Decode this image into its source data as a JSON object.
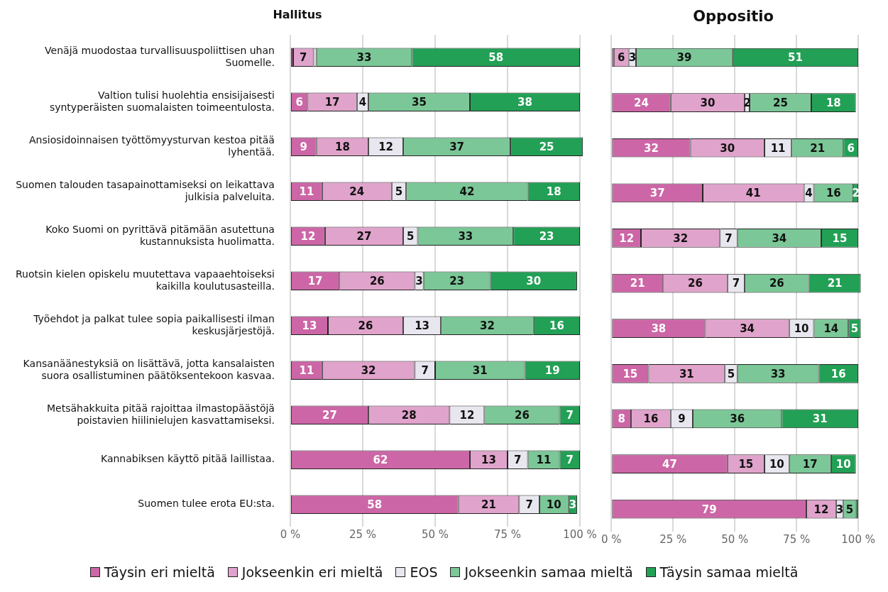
{
  "chart_data": [
    {
      "type": "bar",
      "orientation": "horizontal",
      "stacked": true,
      "title": "Hallitus",
      "categories": [
        "Venäjä muodostaa turvallisuuspoliittisen uhan Suomelle.",
        "Valtion tulisi huolehtia ensisijaisesti syntyperäisten suomalaisten toimeentulosta.",
        "Ansiosidoinnaisen työttömyysturvan kestoa pitää lyhentää.",
        "Suomen talouden tasapainottamiseksi on leikattava julkisia palveluita.",
        "Koko Suomi on pyrittävä pitämään asutettuna kustannuksista huolimatta.",
        "Ruotsin kielen opiskelu muutettava vapaaehtoiseksi kaikilla koulutusasteilla.",
        "Työehdot ja palkat tulee sopia paikallisesti ilman keskusjärjestöjä.",
        "Kansanäänestyksiä on lisättävä, jotta kansalaisten suora osallistuminen päätöksentekoon kasvaa.",
        "Metsähakkuita pitää rajoittaa ilmastopäästöjä poistavien hiilinielujen kasvattamiseksi.",
        "Kannabiksen käyttö pitää laillistaa.",
        "Suomen tulee erota EU:sta."
      ],
      "series": [
        {
          "name": "Täysin eri mieltä",
          "color": "#cc66a6",
          "values": [
            1,
            6,
            9,
            11,
            12,
            17,
            13,
            11,
            27,
            62,
            58
          ],
          "value_labels": [
            null,
            "6",
            "9",
            "11",
            "12",
            "17",
            "13",
            "11",
            "27",
            "62",
            "58"
          ]
        },
        {
          "name": "Jokseenkin eri mieltä",
          "color": "#e0a3cb",
          "values": [
            7,
            17,
            18,
            24,
            27,
            26,
            26,
            32,
            28,
            13,
            21
          ],
          "value_labels": [
            "7",
            "17",
            "18",
            "24",
            "27",
            "26",
            "26",
            "32",
            "28",
            "13",
            "21"
          ]
        },
        {
          "name": "EOS",
          "color": "#e8e6ee",
          "values": [
            1,
            4,
            12,
            5,
            5,
            3,
            13,
            7,
            12,
            7,
            7
          ],
          "value_labels": [
            null,
            "4",
            "12",
            "5",
            "5",
            "3",
            "13",
            "7",
            "12",
            "7",
            "7"
          ]
        },
        {
          "name": "Jokseenkin samaa mieltä",
          "color": "#7bc797",
          "values": [
            33,
            35,
            37,
            42,
            33,
            23,
            32,
            31,
            26,
            11,
            10
          ],
          "value_labels": [
            "33",
            "35",
            "37",
            "42",
            "33",
            "23",
            "32",
            "31",
            "26",
            "11",
            "10"
          ]
        },
        {
          "name": "Täysin samaa mieltä",
          "color": "#22a055",
          "values": [
            58,
            38,
            25,
            18,
            23,
            30,
            16,
            19,
            7,
            7,
            3
          ],
          "value_labels": [
            "58",
            "38",
            "25",
            "18",
            "23",
            "30",
            "16",
            "19",
            "7",
            "7",
            "3"
          ]
        }
      ],
      "xlim": [
        0,
        101
      ],
      "xticks": [
        {
          "value": 0,
          "label": "0 %"
        },
        {
          "value": 25,
          "label": "25 %"
        },
        {
          "value": 50,
          "label": "50 %"
        },
        {
          "value": 75,
          "label": "75 %"
        },
        {
          "value": 100,
          "label": "100 %"
        }
      ],
      "grid": "x",
      "legend": "bottom"
    },
    {
      "type": "bar",
      "orientation": "horizontal",
      "stacked": true,
      "title": "Oppositio",
      "categories": [
        null,
        null,
        null,
        null,
        null,
        null,
        null,
        null,
        null,
        null,
        null
      ],
      "series": [
        {
          "color": "#cc66a6",
          "values": [
            1,
            24,
            32,
            37,
            12,
            21,
            38,
            15,
            8,
            47,
            79
          ],
          "value_labels": [
            null,
            "24",
            "32",
            "37",
            "12",
            "21",
            "38",
            "15",
            "8",
            "47",
            "79"
          ]
        },
        {
          "color": "#e0a3cb",
          "values": [
            6,
            30,
            30,
            41,
            32,
            26,
            34,
            31,
            16,
            15,
            12
          ],
          "value_labels": [
            "6",
            "30",
            "30",
            "41",
            "32",
            "26",
            "34",
            "31",
            "16",
            "15",
            "12"
          ]
        },
        {
          "color": "#e8e6ee",
          "values": [
            3,
            2,
            11,
            4,
            7,
            7,
            10,
            5,
            9,
            10,
            3
          ],
          "value_labels": [
            "3",
            "2",
            "11",
            "4",
            "7",
            "7",
            "10",
            "5",
            "9",
            "10",
            "3"
          ]
        },
        {
          "color": "#7bc797",
          "values": [
            39,
            25,
            21,
            16,
            34,
            26,
            14,
            33,
            36,
            17,
            5
          ],
          "value_labels": [
            "39",
            "25",
            "21",
            "16",
            "34",
            "26",
            "14",
            "33",
            "36",
            "17",
            "5"
          ]
        },
        {
          "color": "#22a055",
          "values": [
            51,
            18,
            6,
            2,
            15,
            21,
            5,
            16,
            31,
            10,
            1
          ],
          "value_labels": [
            "51",
            "18",
            "6",
            "2",
            "15",
            "21",
            "5",
            "16",
            "31",
            "10",
            null
          ]
        }
      ],
      "xlim": [
        0,
        101
      ],
      "xticks": [
        {
          "value": 0,
          "label": "0 %"
        },
        {
          "value": 25,
          "label": "25 %"
        },
        {
          "value": 50,
          "label": "50 %"
        },
        {
          "value": 75,
          "label": "75 %"
        },
        {
          "value": 100,
          "label": "100 %"
        }
      ],
      "grid": "x",
      "tick_labels": "x"
    }
  ]
}
